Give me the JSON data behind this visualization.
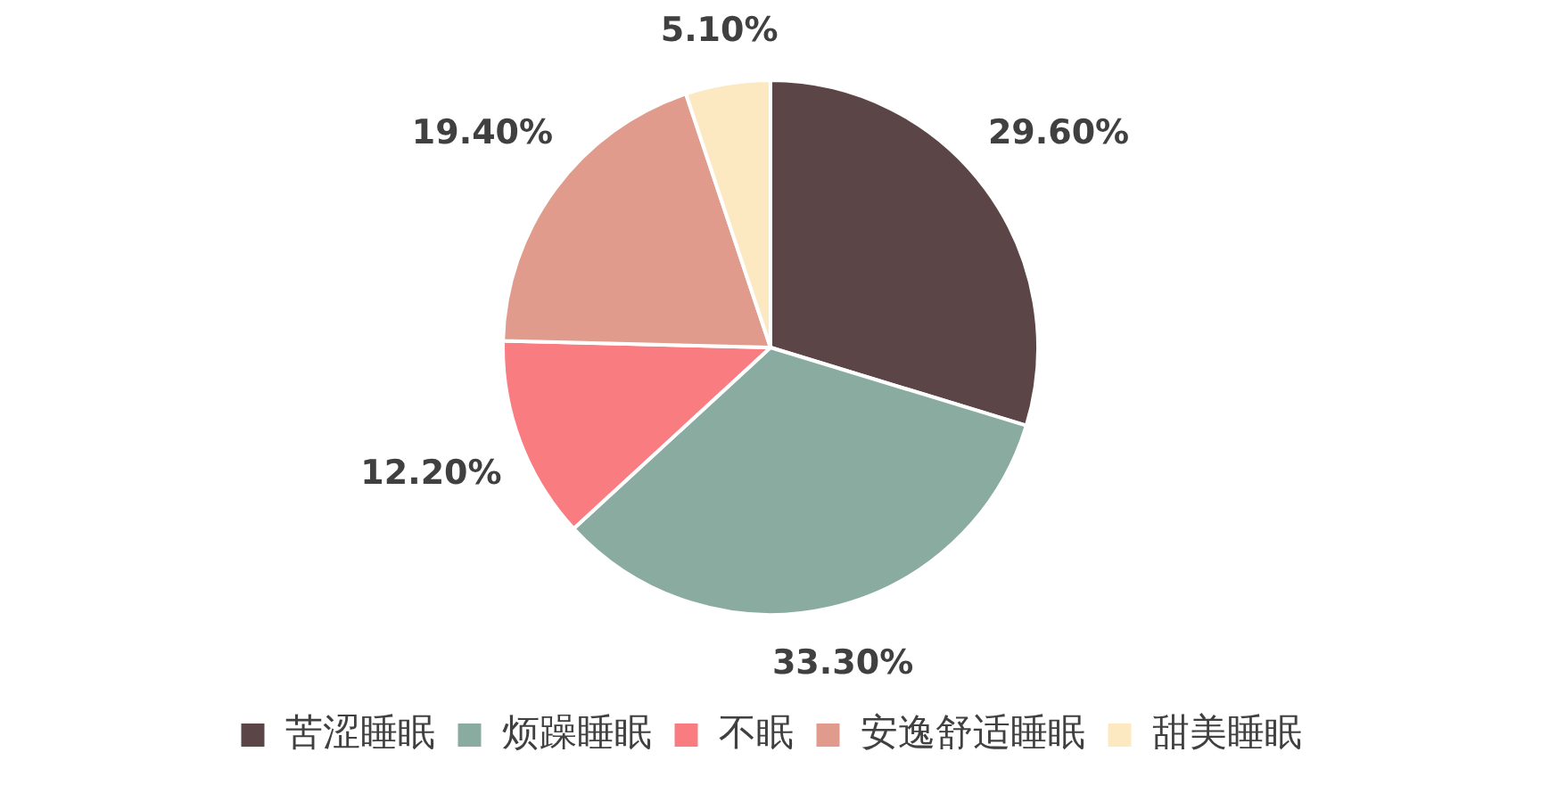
{
  "chart_data": {
    "type": "pie",
    "categories": [
      "苦涩睡眠",
      "烦躁睡眠",
      "不眠",
      "安逸舒适睡眠",
      "甜美睡眠"
    ],
    "values": [
      29.6,
      33.3,
      12.2,
      19.4,
      5.1
    ],
    "colors": [
      "#5b4546",
      "#8aab9f",
      "#f97d80",
      "#e09b8c",
      "#fde9c1"
    ],
    "value_labels": [
      "29.60%",
      "33.30%",
      "12.20%",
      "19.40%",
      "5.10%"
    ],
    "legend": "bottom"
  }
}
